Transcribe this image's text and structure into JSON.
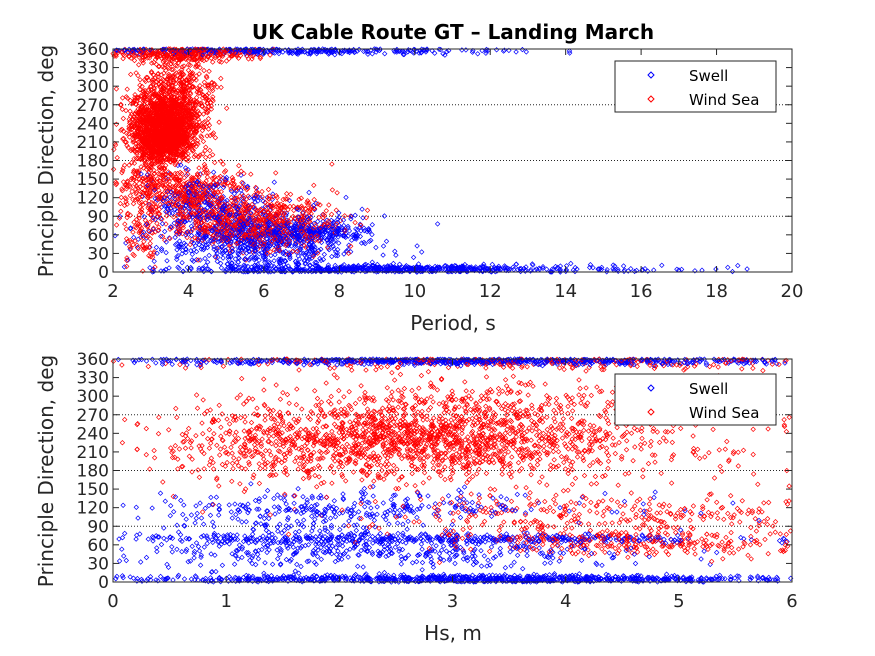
{
  "title": "UK Cable Route GT – Landing March",
  "colors": {
    "swell": "#0000ff",
    "windsea": "#ff0000",
    "axis": "#262626"
  },
  "chart_data": [
    {
      "type": "scatter",
      "xlabel": "Period, s",
      "ylabel": "Principle Direction, deg",
      "xlim": [
        2,
        20
      ],
      "ylim": [
        0,
        360
      ],
      "xticks": [
        2,
        4,
        6,
        8,
        10,
        12,
        14,
        16,
        18,
        20
      ],
      "yticks": [
        0,
        30,
        60,
        90,
        120,
        150,
        180,
        210,
        240,
        270,
        300,
        330,
        360
      ],
      "grid_lines_y": [
        90,
        180,
        270
      ],
      "legend_position": "top-right",
      "series": [
        {
          "name": "Swell",
          "color": "#0000ff",
          "marker": "diamond",
          "clusters": [
            {
              "x": 5.8,
              "y": 45,
              "sx": 1.4,
              "sy": 28,
              "n": 700
            },
            {
              "x": 9.5,
              "y": 5,
              "sx": 2.3,
              "sy": 3,
              "n": 550
            },
            {
              "x": 4.4,
              "y": 110,
              "sx": 0.8,
              "sy": 25,
              "n": 260
            },
            {
              "x": 7.2,
              "y": 65,
              "sx": 0.9,
              "sy": 10,
              "n": 260
            },
            {
              "x": 6.5,
              "y": 357,
              "sx": 2.8,
              "sy": 3,
              "n": 350
            },
            {
              "x": 15.5,
              "y": 4,
              "sx": 1.3,
              "sy": 3,
              "n": 40
            }
          ]
        },
        {
          "name": "Wind Sea",
          "color": "#ff0000",
          "marker": "diamond",
          "clusters": [
            {
              "x": 3.4,
              "y": 240,
              "sx": 0.45,
              "sy": 28,
              "n": 1500
            },
            {
              "x": 3.3,
              "y": 210,
              "sx": 0.35,
              "sy": 15,
              "n": 500
            },
            {
              "x": 3.8,
              "y": 300,
              "sx": 0.5,
              "sy": 30,
              "n": 300
            },
            {
              "x": 4.0,
              "y": 130,
              "sx": 0.7,
              "sy": 25,
              "n": 400
            },
            {
              "x": 5.7,
              "y": 80,
              "sx": 1.1,
              "sy": 22,
              "n": 700
            },
            {
              "x": 3.8,
              "y": 352,
              "sx": 1.0,
              "sy": 6,
              "n": 300
            },
            {
              "x": 2.8,
              "y": 150,
              "sx": 0.3,
              "sy": 30,
              "n": 150
            },
            {
              "x": 2.7,
              "y": 60,
              "sx": 0.3,
              "sy": 30,
              "n": 70
            }
          ]
        }
      ]
    },
    {
      "type": "scatter",
      "xlabel": "Hs, m",
      "ylabel": "Principle Direction, deg",
      "xlim": [
        0,
        6
      ],
      "ylim": [
        0,
        360
      ],
      "xticks": [
        0,
        1,
        2,
        3,
        4,
        5,
        6
      ],
      "yticks": [
        0,
        30,
        60,
        90,
        120,
        150,
        180,
        210,
        240,
        270,
        300,
        330,
        360
      ],
      "grid_lines_y": [
        90,
        180,
        270
      ],
      "legend_position": "top-right",
      "series": [
        {
          "name": "Swell",
          "color": "#0000ff",
          "marker": "diamond",
          "clusters": [
            {
              "x": 3.2,
              "y": 5,
              "sx": 1.5,
              "sy": 3,
              "n": 900
            },
            {
              "x": 3.2,
              "y": 357,
              "sx": 1.5,
              "sy": 3,
              "n": 700
            },
            {
              "x": 2.8,
              "y": 70,
              "sx": 1.3,
              "sy": 4,
              "n": 400
            },
            {
              "x": 2.5,
              "y": 45,
              "sx": 1.2,
              "sy": 12,
              "n": 300
            },
            {
              "x": 2.2,
              "y": 120,
              "sx": 1.1,
              "sy": 12,
              "n": 250
            },
            {
              "x": 1.6,
              "y": 80,
              "sx": 0.6,
              "sy": 30,
              "n": 200
            }
          ]
        },
        {
          "name": "Wind Sea",
          "color": "#ff0000",
          "marker": "diamond",
          "clusters": [
            {
              "x": 2.6,
              "y": 225,
              "sx": 0.9,
              "sy": 28,
              "n": 1300
            },
            {
              "x": 3.0,
              "y": 280,
              "sx": 0.9,
              "sy": 25,
              "n": 300
            },
            {
              "x": 4.0,
              "y": 240,
              "sx": 1.1,
              "sy": 45,
              "n": 350
            },
            {
              "x": 4.7,
              "y": 65,
              "sx": 0.8,
              "sy": 12,
              "n": 300
            },
            {
              "x": 4.2,
              "y": 110,
              "sx": 1.2,
              "sy": 18,
              "n": 300
            },
            {
              "x": 3.5,
              "y": 355,
              "sx": 1.6,
              "sy": 6,
              "n": 250
            },
            {
              "x": 1.2,
              "y": 220,
              "sx": 0.5,
              "sy": 35,
              "n": 120
            }
          ]
        }
      ]
    }
  ]
}
